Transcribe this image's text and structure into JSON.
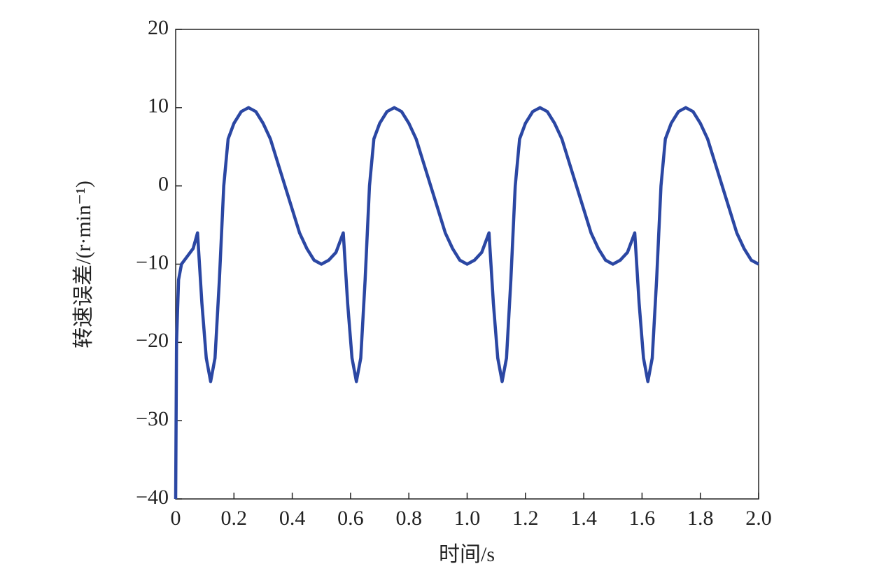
{
  "chart_data": {
    "type": "line",
    "xlabel": "时间/s",
    "ylabel": "转速误差/(r·min⁻¹)",
    "color": "#2b47a3",
    "x": [
      0,
      0.003,
      0.01,
      0.02,
      0.04,
      0.06,
      0.075,
      0.09,
      0.105,
      0.12,
      0.135,
      0.15,
      0.165,
      0.18,
      0.2,
      0.225,
      0.25,
      0.275,
      0.3,
      0.325,
      0.35,
      0.375,
      0.4,
      0.425,
      0.45,
      0.475,
      0.5,
      0.525,
      0.55,
      0.575,
      0.59,
      0.605,
      0.62,
      0.635,
      0.65,
      0.665,
      0.68,
      0.7,
      0.725,
      0.75,
      0.775,
      0.8,
      0.825,
      0.85,
      0.875,
      0.9,
      0.925,
      0.95,
      0.975,
      1.0,
      1.025,
      1.05,
      1.075,
      1.09,
      1.105,
      1.12,
      1.135,
      1.15,
      1.165,
      1.18,
      1.2,
      1.225,
      1.25,
      1.275,
      1.3,
      1.325,
      1.35,
      1.375,
      1.4,
      1.425,
      1.45,
      1.475,
      1.5,
      1.525,
      1.55,
      1.575,
      1.59,
      1.605,
      1.62,
      1.635,
      1.65,
      1.665,
      1.68,
      1.7,
      1.725,
      1.75,
      1.775,
      1.8,
      1.825,
      1.85,
      1.875,
      1.9,
      1.925,
      1.95,
      1.975,
      2.0
    ],
    "values": [
      -40,
      -20,
      -12,
      -10,
      -9,
      -8,
      -6,
      -15,
      -22,
      -25,
      -22,
      -12,
      0,
      6,
      8,
      9.5,
      10,
      9.5,
      8,
      6,
      3,
      0,
      -3,
      -6,
      -8,
      -9.5,
      -10,
      -9.5,
      -8.5,
      -6,
      -15,
      -22,
      -25,
      -22,
      -12,
      0,
      6,
      8,
      9.5,
      10,
      9.5,
      8,
      6,
      3,
      0,
      -3,
      -6,
      -8,
      -9.5,
      -10,
      -9.5,
      -8.5,
      -6,
      -15,
      -22,
      -25,
      -22,
      -12,
      0,
      6,
      8,
      9.5,
      10,
      9.5,
      8,
      6,
      3,
      0,
      -3,
      -6,
      -8,
      -9.5,
      -10,
      -9.5,
      -8.5,
      -6,
      -15,
      -22,
      -25,
      -22,
      -12,
      0,
      6,
      8,
      9.5,
      10,
      9.5,
      8,
      6,
      3,
      0,
      -3,
      -6,
      -8,
      -9.5,
      -10
    ],
    "xlim": [
      0,
      2.0
    ],
    "xticks": [
      0,
      0.2,
      0.4,
      0.6,
      0.8,
      {
        "value": 1.0,
        "label": "1.0"
      },
      1.2,
      1.4,
      1.6,
      1.8,
      {
        "value": 2.0,
        "label": "2.0"
      }
    ],
    "ylim": [
      -40,
      20
    ],
    "yticks": [
      {
        "value": -40,
        "label": "−40"
      },
      {
        "value": -30,
        "label": "−30"
      },
      {
        "value": -20,
        "label": "−20"
      },
      {
        "value": -10,
        "label": "−10"
      },
      0,
      10,
      20
    ]
  }
}
